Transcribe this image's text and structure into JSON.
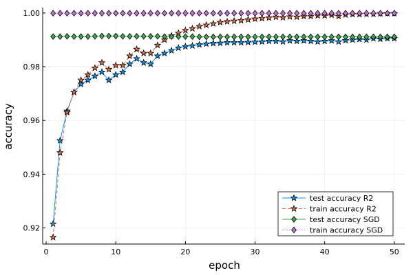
{
  "chart_data": {
    "type": "line",
    "xlabel": "epoch",
    "ylabel": "accuracy",
    "xlim": [
      -0.5,
      51.5
    ],
    "ylim": [
      0.914,
      1.002
    ],
    "x_ticks": [
      0,
      10,
      20,
      30,
      40,
      50
    ],
    "y_ticks": [
      0.92,
      0.94,
      0.96,
      0.98,
      1.0
    ],
    "y_tick_labels": [
      "0.92",
      "0.94",
      "0.96",
      "0.98",
      "1.00"
    ],
    "grid": true,
    "legend_position": "bottom-right",
    "x": [
      1,
      2,
      3,
      4,
      5,
      6,
      7,
      8,
      9,
      10,
      11,
      12,
      13,
      14,
      15,
      16,
      17,
      18,
      19,
      20,
      21,
      22,
      23,
      24,
      25,
      26,
      27,
      28,
      29,
      30,
      31,
      32,
      33,
      34,
      35,
      36,
      37,
      38,
      39,
      40,
      41,
      42,
      43,
      44,
      45,
      46,
      47,
      48,
      49,
      50
    ],
    "series": [
      {
        "name": "test accuracy R2",
        "color": "#009AFA",
        "line_style": "solid",
        "marker": "star",
        "values": [
          0.9215,
          0.9525,
          0.9635,
          0.9705,
          0.9735,
          0.975,
          0.9765,
          0.978,
          0.975,
          0.977,
          0.978,
          0.981,
          0.983,
          0.9815,
          0.981,
          0.984,
          0.985,
          0.986,
          0.987,
          0.9875,
          0.9878,
          0.9882,
          0.9885,
          0.9887,
          0.9888,
          0.989,
          0.989,
          0.989,
          0.9891,
          0.9892,
          0.9893,
          0.9895,
          0.9895,
          0.9893,
          0.9897,
          0.9895,
          0.9897,
          0.9895,
          0.9893,
          0.9895,
          0.9897,
          0.9893,
          0.9898,
          0.99,
          0.9902,
          0.99,
          0.9905,
          0.9903,
          0.9905,
          0.9905
        ]
      },
      {
        "name": "train accuracy R2",
        "color": "#E36F47",
        "line_style": "dashed",
        "marker": "star",
        "values": [
          0.9165,
          0.948,
          0.963,
          0.9705,
          0.975,
          0.977,
          0.9795,
          0.9815,
          0.979,
          0.9805,
          0.9805,
          0.984,
          0.9865,
          0.985,
          0.985,
          0.988,
          0.99,
          0.9915,
          0.9925,
          0.9935,
          0.9942,
          0.995,
          0.9955,
          0.996,
          0.9965,
          0.9968,
          0.997,
          0.9972,
          0.9975,
          0.9978,
          0.998,
          0.9982,
          0.9985,
          0.9983,
          0.9986,
          0.9985,
          0.9988,
          0.9988,
          0.999,
          0.999,
          0.9992,
          0.9988,
          0.9993,
          0.9995,
          0.9995,
          0.9996,
          0.9996,
          0.9997,
          0.9998,
          0.9998
        ]
      },
      {
        "name": "test accuracy SGD",
        "color": "#3EA44E",
        "line_style": "solid",
        "marker": "diamond",
        "values": [
          0.9912,
          0.9912,
          0.9913,
          0.9912,
          0.9912,
          0.9912,
          0.9913,
          0.9914,
          0.9914,
          0.9914,
          0.9913,
          0.9913,
          0.9913,
          0.9913,
          0.9913,
          0.9913,
          0.9912,
          0.9912,
          0.9912,
          0.9912,
          0.9912,
          0.9911,
          0.9911,
          0.9911,
          0.9911,
          0.9911,
          0.9911,
          0.9911,
          0.9911,
          0.9911,
          0.9911,
          0.9911,
          0.9911,
          0.9911,
          0.9911,
          0.9911,
          0.9911,
          0.9911,
          0.9911,
          0.9911,
          0.9911,
          0.9911,
          0.9911,
          0.9911,
          0.9911,
          0.9911,
          0.9911,
          0.9911,
          0.9911,
          0.9911
        ]
      },
      {
        "name": "train accuracy SGD",
        "color": "#C271D2",
        "line_style": "dotted",
        "marker": "diamond",
        "values": [
          0.9999,
          0.9999,
          0.9999,
          0.9999,
          0.9999,
          0.9999,
          0.9999,
          0.9999,
          0.9999,
          0.9999,
          0.9999,
          0.9999,
          0.9999,
          0.9999,
          0.9999,
          0.9999,
          0.9999,
          0.9999,
          0.9999,
          0.9999,
          0.9999,
          0.9999,
          0.9999,
          0.9999,
          0.9999,
          0.9999,
          0.9999,
          0.9999,
          0.9999,
          0.9999,
          0.9999,
          0.9999,
          0.9999,
          0.9999,
          0.9999,
          0.9999,
          0.9999,
          0.9999,
          0.9999,
          0.9999,
          0.9999,
          0.9999,
          0.9999,
          0.9999,
          0.9999,
          0.9999,
          0.9999,
          0.9999,
          0.9999,
          0.9999
        ]
      }
    ]
  }
}
